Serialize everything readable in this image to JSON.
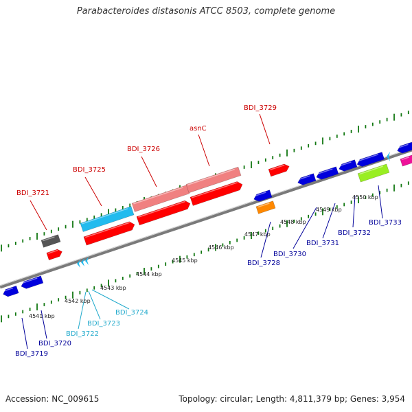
{
  "title": "Parabacteroides distasonis ATCC 8503, complete genome",
  "footer": {
    "accession": "Accession: NC_009615",
    "summary": "Topology: circular; Length: 4,811,379 bp; Genes: 3,954"
  },
  "colors": {
    "forward_gene": "#ff0000",
    "forward_gene_light": "#f08080",
    "reverse_gene": "#0000dd",
    "cyan_gene": "#22bbee",
    "dark_gene": "#555555",
    "orange_gene": "#ff8800",
    "lime_gene": "#99ee22",
    "magenta_gene": "#ee1199",
    "axis": "#888888",
    "ticks": "#117711",
    "label_red": "#cc0000",
    "label_blue": "#000099",
    "label_cyan": "#22aacc"
  },
  "scale_labels": [
    "4541 kbp",
    "4542 kbp",
    "4543 kbp",
    "4544 kbp",
    "4545 kbp",
    "4546 kbp",
    "4547 kbp",
    "4548 kbp",
    "4549 kbp",
    "4550 kbp"
  ],
  "genes": [
    {
      "name": "BDI_3721",
      "color": "red"
    },
    {
      "name": "BDI_3725",
      "color": "red"
    },
    {
      "name": "BDI_3726",
      "color": "red"
    },
    {
      "name": "asnC",
      "color": "red"
    },
    {
      "name": "BDI_3729",
      "color": "red"
    },
    {
      "name": "BDI_3719",
      "color": "blue"
    },
    {
      "name": "BDI_3720",
      "color": "blue"
    },
    {
      "name": "BDI_3722",
      "color": "cyan"
    },
    {
      "name": "BDI_3723",
      "color": "cyan"
    },
    {
      "name": "BDI_3724",
      "color": "cyan"
    },
    {
      "name": "BDI_3728",
      "color": "blue"
    },
    {
      "name": "BDI_3730",
      "color": "blue"
    },
    {
      "name": "BDI_3731",
      "color": "blue"
    },
    {
      "name": "BDI_3732",
      "color": "blue"
    },
    {
      "name": "BDI_3733",
      "color": "blue"
    }
  ]
}
